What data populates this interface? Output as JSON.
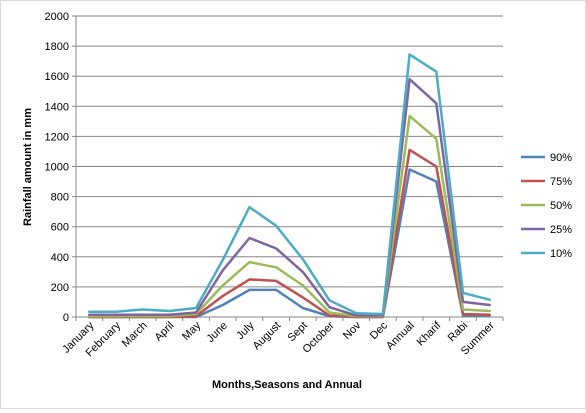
{
  "chart_data": {
    "type": "line",
    "title": "",
    "xlabel": "Months,Seasons and Annual",
    "ylabel": "Rainfall amount in mm",
    "ylim": [
      0,
      2000
    ],
    "yticks": [
      0,
      200,
      400,
      600,
      800,
      1000,
      1200,
      1400,
      1600,
      1800,
      2000
    ],
    "grid": true,
    "legend_position": "right",
    "categories": [
      "January",
      "February",
      "March",
      "April",
      "May",
      "June",
      "July",
      "August",
      "Sept",
      "October",
      "Nov",
      "Dec",
      "Annual",
      "Kharif",
      "Rabi",
      "Summer"
    ],
    "series": [
      {
        "name": "90%",
        "color": "#4f81bd",
        "values": [
          0,
          0,
          0,
          0,
          0,
          80,
          180,
          180,
          60,
          5,
          0,
          0,
          980,
          900,
          10,
          10
        ]
      },
      {
        "name": "75%",
        "color": "#c0504d",
        "values": [
          0,
          0,
          0,
          0,
          5,
          140,
          250,
          240,
          130,
          10,
          0,
          0,
          1110,
          1000,
          20,
          15
        ]
      },
      {
        "name": "50%",
        "color": "#9bbb59",
        "values": [
          5,
          5,
          5,
          5,
          20,
          210,
          365,
          330,
          210,
          30,
          5,
          5,
          1335,
          1185,
          50,
          40
        ]
      },
      {
        "name": "25%",
        "color": "#8064a2",
        "values": [
          15,
          15,
          15,
          15,
          30,
          310,
          525,
          455,
          300,
          65,
          10,
          10,
          1580,
          1420,
          100,
          80
        ]
      },
      {
        "name": "10%",
        "color": "#4bacc6",
        "values": [
          35,
          35,
          50,
          40,
          60,
          380,
          730,
          605,
          385,
          110,
          25,
          20,
          1745,
          1630,
          160,
          115
        ]
      }
    ]
  }
}
